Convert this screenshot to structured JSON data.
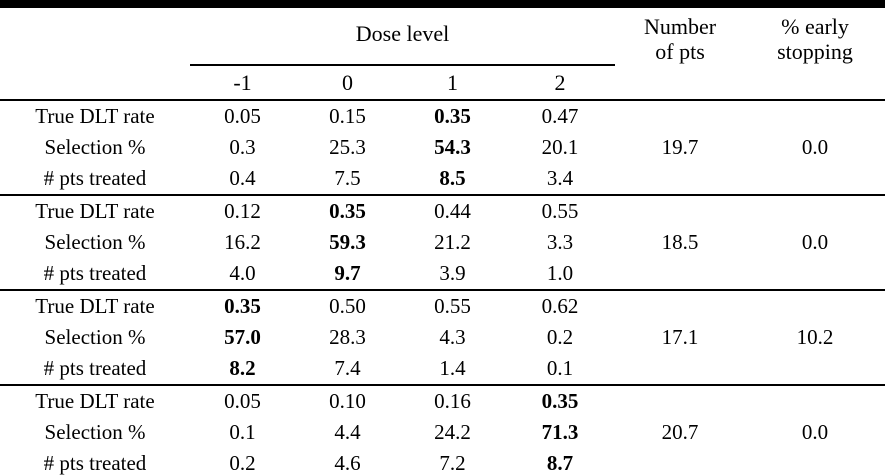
{
  "table": {
    "header": {
      "dose_level_label": "Dose level",
      "dose_columns": [
        "-1",
        "0",
        "1",
        "2"
      ],
      "number_of_pts_lines": [
        "Number",
        "of pts"
      ],
      "early_stopping_lines": [
        "% early",
        "stopping"
      ]
    },
    "row_labels": [
      "True DLT rate",
      "Selection %",
      "# pts treated"
    ],
    "scenarios": [
      {
        "bold_col": 2,
        "true_dlt_rate": [
          "0.05",
          "0.15",
          "0.35",
          "0.47"
        ],
        "selection_pct": [
          "0.3",
          "25.3",
          "54.3",
          "20.1"
        ],
        "pts_treated": [
          "0.4",
          "7.5",
          "8.5",
          "3.4"
        ],
        "number_of_pts": "19.7",
        "early_stopping": "0.0"
      },
      {
        "bold_col": 1,
        "true_dlt_rate": [
          "0.12",
          "0.35",
          "0.44",
          "0.55"
        ],
        "selection_pct": [
          "16.2",
          "59.3",
          "21.2",
          "3.3"
        ],
        "pts_treated": [
          "4.0",
          "9.7",
          "3.9",
          "1.0"
        ],
        "number_of_pts": "18.5",
        "early_stopping": "0.0"
      },
      {
        "bold_col": 0,
        "true_dlt_rate": [
          "0.35",
          "0.50",
          "0.55",
          "0.62"
        ],
        "selection_pct": [
          "57.0",
          "28.3",
          "4.3",
          "0.2"
        ],
        "pts_treated": [
          "8.2",
          "7.4",
          "1.4",
          "0.1"
        ],
        "number_of_pts": "17.1",
        "early_stopping": "10.2"
      },
      {
        "bold_col": 3,
        "true_dlt_rate": [
          "0.05",
          "0.10",
          "0.16",
          "0.35"
        ],
        "selection_pct": [
          "0.1",
          "4.4",
          "24.2",
          "71.3"
        ],
        "pts_treated": [
          "0.2",
          "4.6",
          "7.2",
          "8.7"
        ],
        "number_of_pts": "20.7",
        "early_stopping": "0.0"
      }
    ],
    "colors": {
      "text": "#000000",
      "background": "#ffffff",
      "rule": "#000000"
    }
  }
}
